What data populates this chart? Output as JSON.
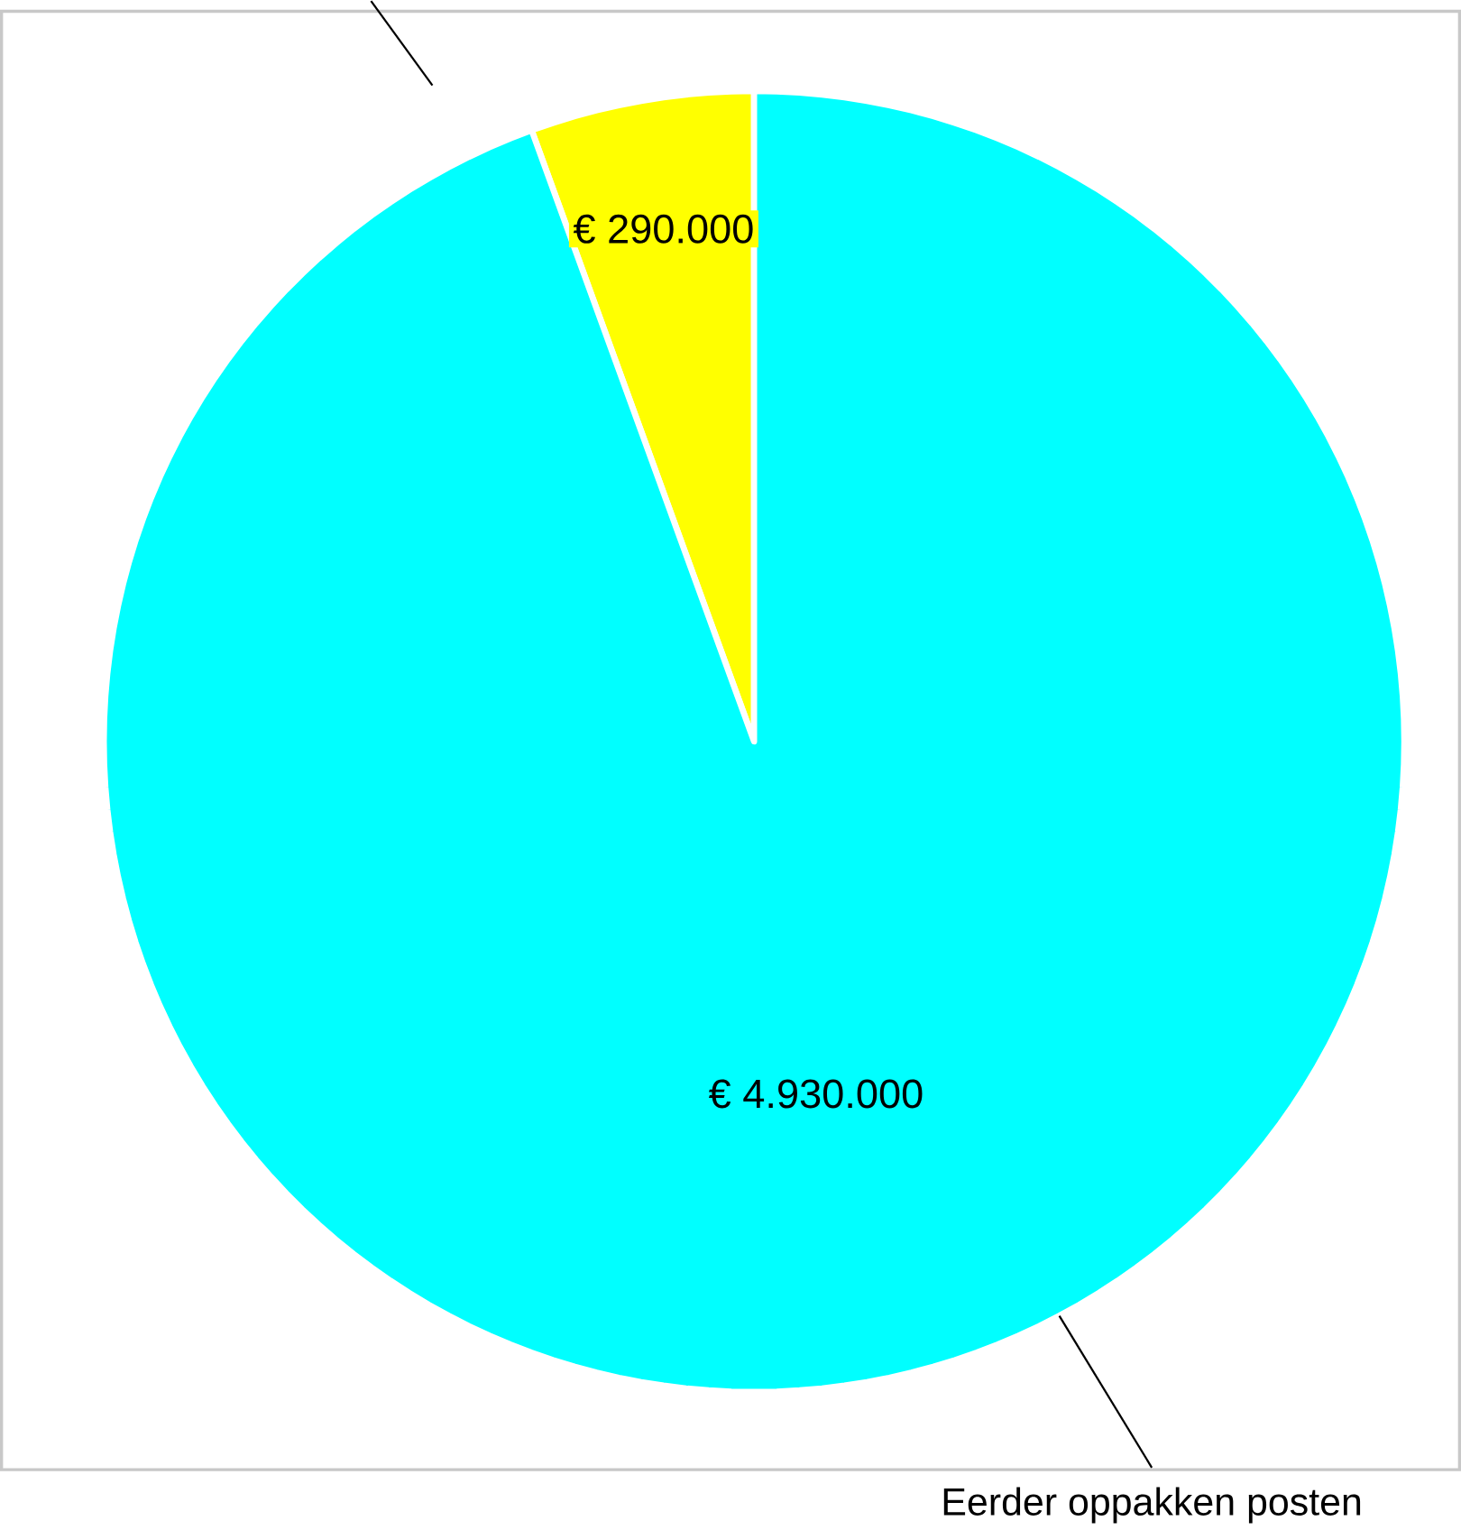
{
  "chart_data": {
    "type": "pie",
    "categories": [
      null,
      "Eerder oppakken posten"
    ],
    "values": [
      290000,
      4930000
    ],
    "colors": [
      "#ffff00",
      "#00ffff"
    ],
    "value_labels": [
      "€ 290.000",
      "€ 4.930.000"
    ]
  }
}
